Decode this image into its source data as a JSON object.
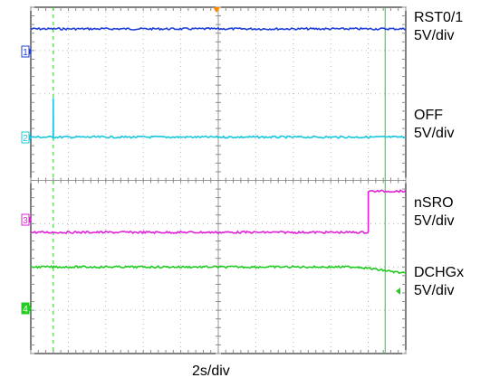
{
  "chart_data": {
    "type": "line",
    "title": "",
    "xlabel": "2s/div",
    "ylabel": "",
    "grid": true,
    "x_divisions": 10,
    "y_divisions": 8,
    "x_unit": "s",
    "x_per_div": 2,
    "xlim": [
      0,
      20
    ],
    "trigger_marker_x": 10,
    "cursors_x": [
      1.2,
      18.9
    ],
    "series": [
      {
        "name": "RST0/1",
        "channel": "1",
        "scale": "5V/div",
        "color": "#1f3fd6",
        "marker_color": "#1f3fd6",
        "points": [
          [
            0,
            0.5
          ],
          [
            20,
            0.5
          ]
        ]
      },
      {
        "name": "OFF",
        "channel": "2",
        "scale": "5V/div",
        "color": "#19c8dc",
        "marker_color": "#19c8dc",
        "points": [
          [
            0,
            3.0
          ],
          [
            1.19,
            3.0
          ],
          [
            1.2,
            2.1
          ],
          [
            1.21,
            3.0
          ],
          [
            20,
            3.0
          ]
        ]
      },
      {
        "name": "nSRO",
        "channel": "3",
        "scale": "5V/div",
        "color": "#e020d8",
        "marker_color": "#e020d8",
        "points": [
          [
            0,
            5.2
          ],
          [
            18.0,
            5.2
          ],
          [
            18.0,
            4.25
          ],
          [
            20,
            4.25
          ]
        ]
      },
      {
        "name": "DCHGx",
        "channel": "4",
        "scale": "5V/div",
        "color": "#22cc22",
        "marker_color": "#22cc22",
        "points": [
          [
            0,
            6.0
          ],
          [
            17.5,
            6.0
          ],
          [
            20,
            6.15
          ]
        ]
      }
    ]
  }
}
